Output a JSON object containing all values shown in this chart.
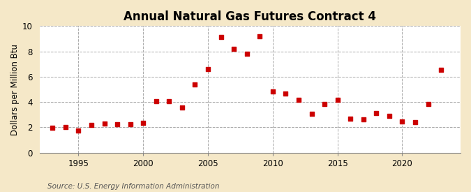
{
  "title": "Annual Natural Gas Futures Contract 4",
  "ylabel": "Dollars per Million Btu",
  "source": "Source: U.S. Energy Information Administration",
  "fig_background_color": "#f5e8c8",
  "plot_background_color": "#ffffff",
  "years": [
    1993,
    1994,
    1995,
    1996,
    1997,
    1998,
    1999,
    2000,
    2001,
    2002,
    2003,
    2004,
    2005,
    2006,
    2007,
    2008,
    2009,
    2010,
    2011,
    2012,
    2013,
    2014,
    2015,
    2016,
    2017,
    2018,
    2019,
    2020,
    2021,
    2022,
    2023
  ],
  "values": [
    1.95,
    2.02,
    1.77,
    2.2,
    2.3,
    2.23,
    2.23,
    2.38,
    4.05,
    4.08,
    3.55,
    5.4,
    6.6,
    9.15,
    8.18,
    7.8,
    9.2,
    4.85,
    4.65,
    4.2,
    3.05,
    3.85,
    4.15,
    2.68,
    2.63,
    3.15,
    2.92,
    2.48,
    2.42,
    3.82,
    6.52
  ],
  "marker_color": "#cc0000",
  "marker_size": 18,
  "ylim": [
    0,
    10
  ],
  "yticks": [
    0,
    2,
    4,
    6,
    8,
    10
  ],
  "xtick_years": [
    1995,
    2000,
    2005,
    2010,
    2015,
    2020
  ],
  "xlim": [
    1992.0,
    2024.5
  ],
  "grid_color": "#aaaaaa",
  "title_fontsize": 12,
  "ylabel_fontsize": 8.5,
  "tick_fontsize": 8.5,
  "source_fontsize": 7.5
}
